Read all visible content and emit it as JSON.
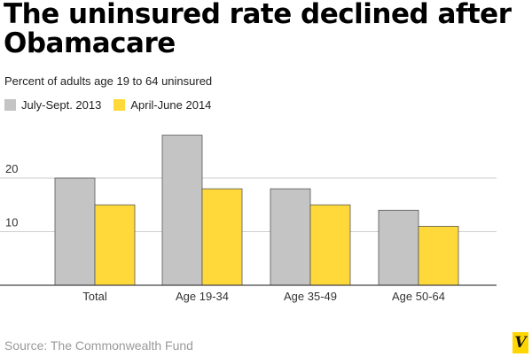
{
  "chart_data": {
    "type": "bar",
    "title": "The uninsured rate declined after Obamacare",
    "subtitle": "Percent of adults age 19 to 64 uninsured",
    "categories": [
      "Total",
      "Age 19-34",
      "Age 35-49",
      "Age 50-64"
    ],
    "series": [
      {
        "name": "July-Sept. 2013",
        "color": "#c4c4c4",
        "values": [
          20,
          28,
          18,
          14
        ]
      },
      {
        "name": "April-June 2014",
        "color": "#ffd93a",
        "values": [
          15,
          18,
          15,
          11
        ]
      }
    ],
    "yticks": [
      10,
      20
    ],
    "ylim": [
      0,
      30
    ],
    "xlabel": "",
    "ylabel": "",
    "source": "Source: The Commonwealth Fund",
    "brand_logo": "V"
  }
}
